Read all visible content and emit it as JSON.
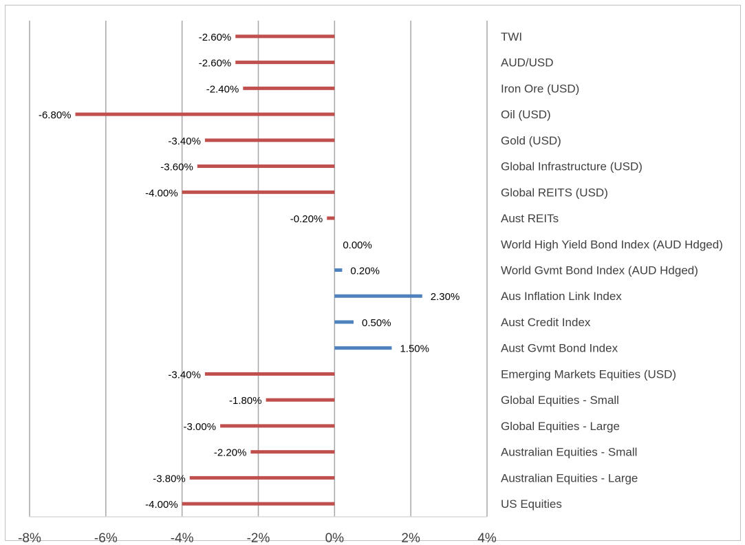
{
  "chart_data": {
    "type": "bar",
    "orientation": "horizontal",
    "title": "",
    "xlabel": "",
    "ylabel": "",
    "xlim": [
      -8,
      4
    ],
    "x_ticks": [
      "-8%",
      "-6%",
      "-4%",
      "-2%",
      "0%",
      "2%",
      "4%"
    ],
    "grid": "vertical",
    "legend": "none",
    "colors": {
      "negative": "#c0504d",
      "positive": "#4f81bd"
    },
    "categories": [
      "TWI",
      "AUD/USD",
      "Iron Ore (USD)",
      "Oil (USD)",
      "Gold (USD)",
      "Global Infrastructure (USD)",
      "Global REITS (USD)",
      "Aust REITs",
      "World High Yield Bond Index (AUD Hdged)",
      "World Gvmt Bond Index (AUD Hdged)",
      "Aus Inflation Link Index",
      "Aust Credit Index",
      "Aust Gvmt Bond Index",
      "Emerging Markets Equities (USD)",
      "Global Equities - Small",
      "Global Equities - Large",
      "Australian Equities - Small",
      "Australian Equities - Large",
      "US Equities"
    ],
    "values": [
      -2.6,
      -2.6,
      -2.4,
      -6.8,
      -3.4,
      -3.6,
      -4.0,
      -0.2,
      0.0,
      0.2,
      2.3,
      0.5,
      1.5,
      -3.4,
      -1.8,
      -3.0,
      -2.2,
      -3.8,
      -4.0
    ],
    "data_labels": [
      "-2.60%",
      "-2.60%",
      "-2.40%",
      "-6.80%",
      "-3.40%",
      "-3.60%",
      "-4.00%",
      "-0.20%",
      "0.00%",
      "0.20%",
      "2.30%",
      "0.50%",
      "1.50%",
      "-3.40%",
      "-1.80%",
      "-3.00%",
      "-2.20%",
      "-3.80%",
      "-4.00%"
    ]
  }
}
